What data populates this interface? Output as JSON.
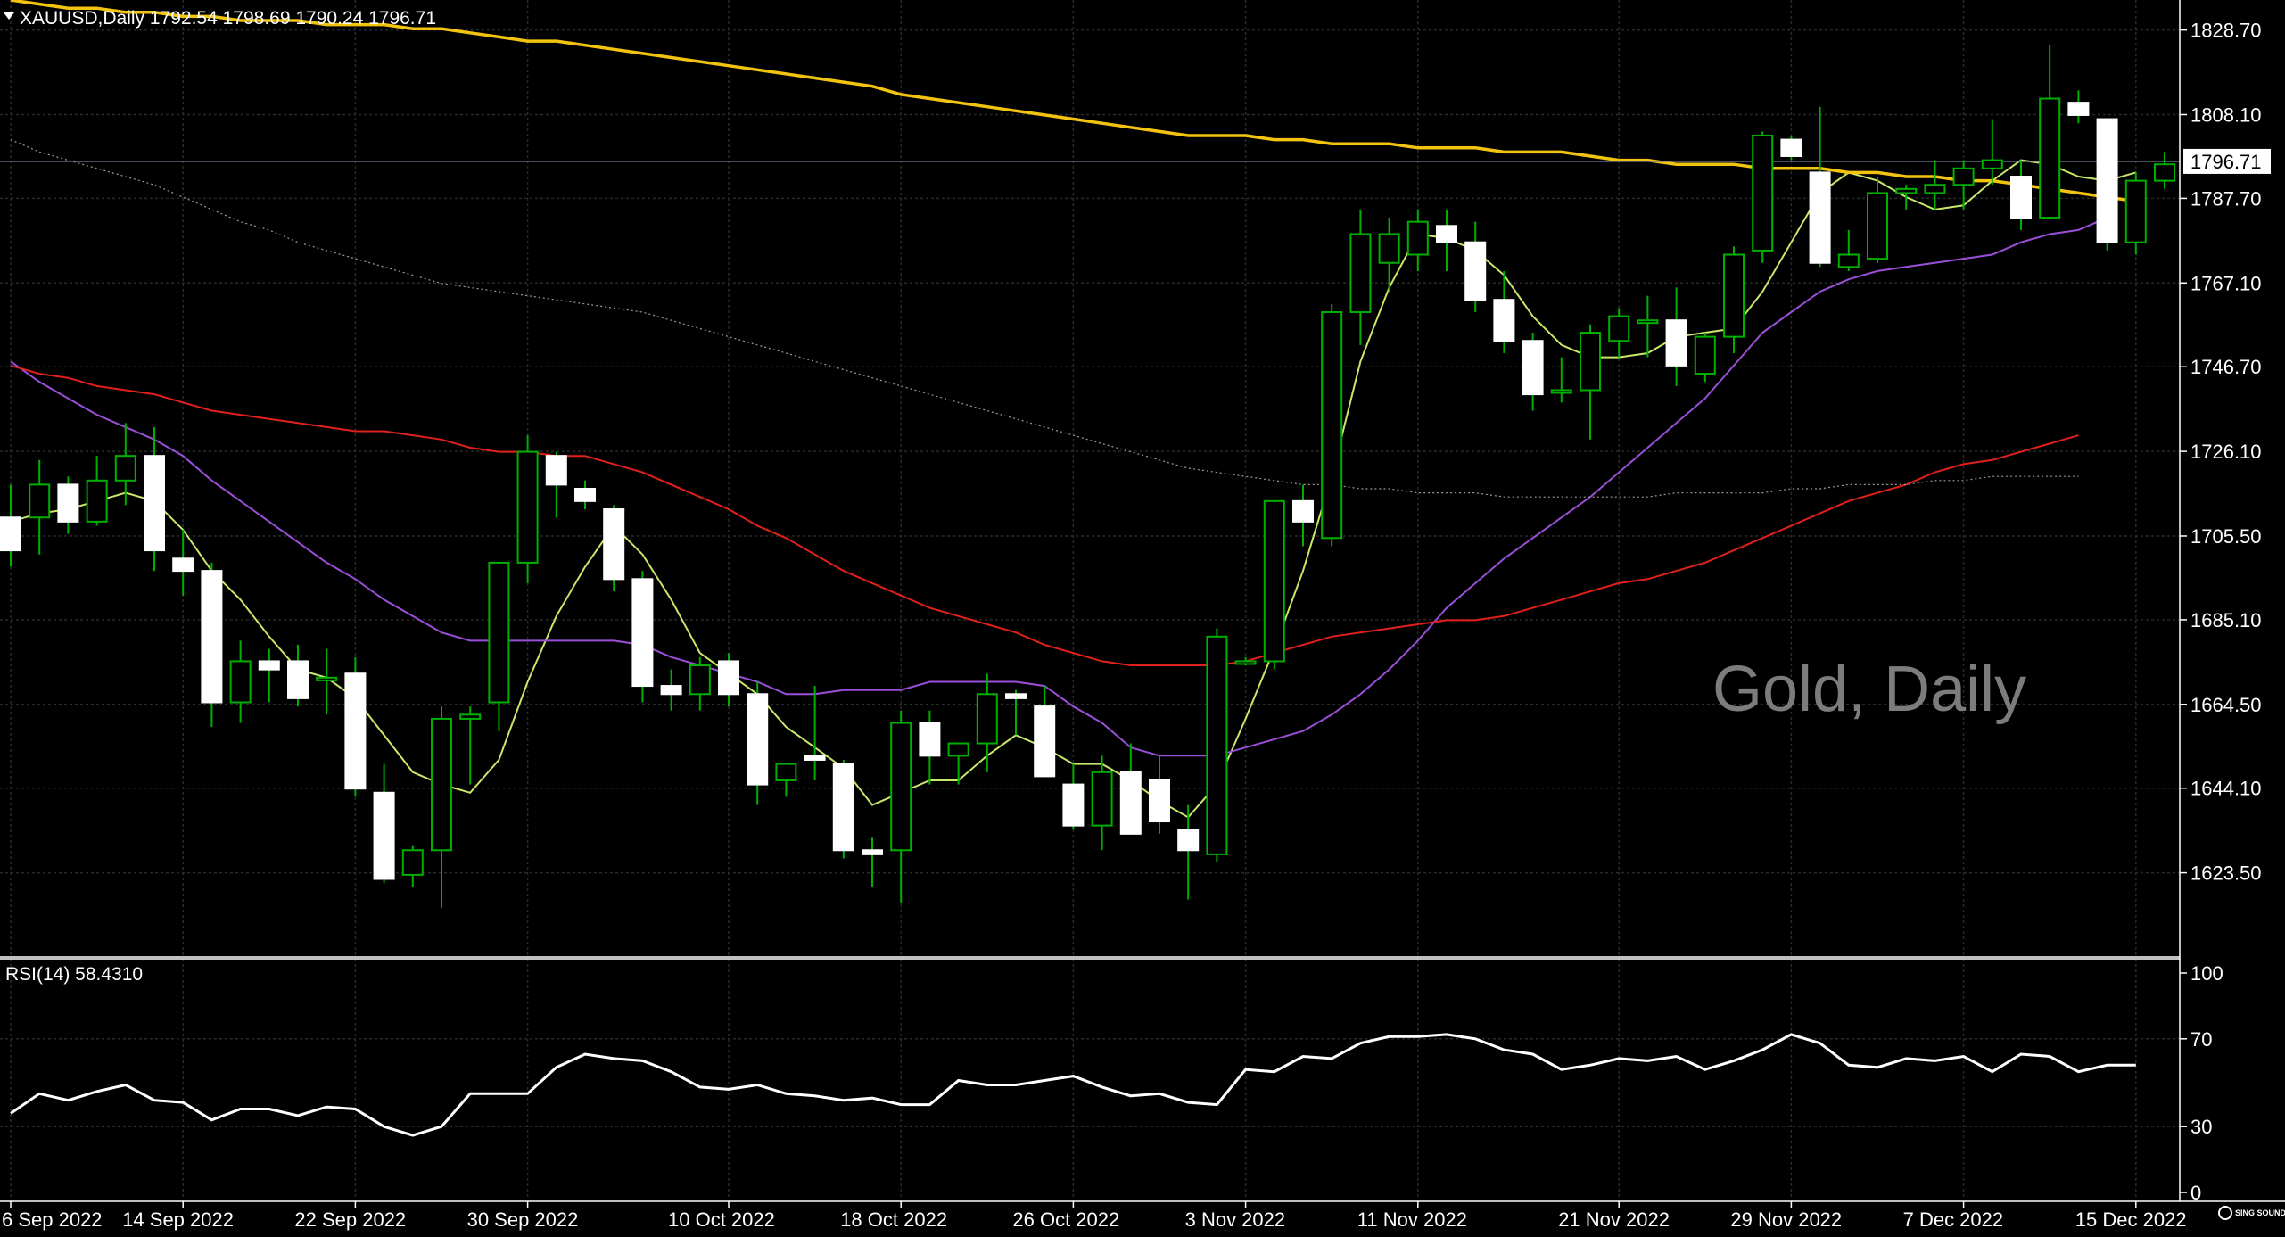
{
  "header": {
    "symbol_line": "XAUUSD,Daily  1792.54 1798.69 1790.24 1796.71",
    "rsi_label": "RSI(14) 58.4310",
    "watermark": "Gold, Daily",
    "logo": "SING SOUND"
  },
  "colors": {
    "background": "#000000",
    "grid": "#2a2a2a",
    "bull_candle": "#000000",
    "bull_outline": "#00b000",
    "bear_candle": "#ffffff",
    "wick": "#00b000",
    "ma_fast": "#c8e86a",
    "ma_purple": "#9b4fd8",
    "ma_red": "#e0201c",
    "ma_yellow": "#f2c40f",
    "ma_grey": "#9a9a9a",
    "rsi_line": "#ffffff",
    "current_price_line": "#708090"
  },
  "chart_data": [
    {
      "type": "candlestick",
      "title": "XAUUSD,Daily",
      "current_price": 1796.71,
      "current_price_label": "1796.71",
      "ylim": [
        1603.0,
        1836.0
      ],
      "y_ticks": [
        "1623.50",
        "1644.10",
        "1664.50",
        "1685.10",
        "1705.50",
        "1726.10",
        "1746.70",
        "1767.10",
        "1787.70",
        "1808.10",
        "1828.70"
      ],
      "x_tick_labels": [
        "6 Sep 2022",
        "14 Sep 2022",
        "22 Sep 2022",
        "30 Sep 2022",
        "10 Oct 2022",
        "18 Oct 2022",
        "26 Oct 2022",
        "3 Nov 2022",
        "11 Nov 2022",
        "21 Nov 2022",
        "29 Nov 2022",
        "7 Dec 2022",
        "15 Dec 2022"
      ],
      "x_tick_indices": [
        0,
        6,
        12,
        18,
        25,
        31,
        37,
        43,
        49,
        56,
        62,
        68,
        74
      ],
      "grid": true,
      "candles": [
        {
          "o": 1710,
          "h": 1718,
          "l": 1698,
          "c": 1702
        },
        {
          "o": 1710,
          "h": 1724,
          "l": 1701,
          "c": 1718
        },
        {
          "o": 1718,
          "h": 1720,
          "l": 1706,
          "c": 1709
        },
        {
          "o": 1709,
          "h": 1725,
          "l": 1708,
          "c": 1719
        },
        {
          "o": 1719,
          "h": 1733,
          "l": 1713,
          "c": 1725
        },
        {
          "o": 1725,
          "h": 1732,
          "l": 1697,
          "c": 1702
        },
        {
          "o": 1700,
          "h": 1707,
          "l": 1691,
          "c": 1697
        },
        {
          "o": 1697,
          "h": 1699,
          "l": 1659,
          "c": 1665
        },
        {
          "o": 1665,
          "h": 1680,
          "l": 1660,
          "c": 1675
        },
        {
          "o": 1675,
          "h": 1678,
          "l": 1665,
          "c": 1673
        },
        {
          "o": 1675,
          "h": 1679,
          "l": 1664,
          "c": 1666
        },
        {
          "o": 1671,
          "h": 1678,
          "l": 1662,
          "c": 1671
        },
        {
          "o": 1672,
          "h": 1676,
          "l": 1642,
          "c": 1644
        },
        {
          "o": 1643,
          "h": 1650,
          "l": 1621,
          "c": 1622
        },
        {
          "o": 1623,
          "h": 1630,
          "l": 1620,
          "c": 1629
        },
        {
          "o": 1629,
          "h": 1664,
          "l": 1615,
          "c": 1661
        },
        {
          "o": 1661,
          "h": 1664,
          "l": 1645,
          "c": 1662
        },
        {
          "o": 1665,
          "h": 1699,
          "l": 1658,
          "c": 1699
        },
        {
          "o": 1699,
          "h": 1730,
          "l": 1694,
          "c": 1726
        },
        {
          "o": 1725,
          "h": 1726,
          "l": 1710,
          "c": 1718
        },
        {
          "o": 1717,
          "h": 1719,
          "l": 1712,
          "c": 1714
        },
        {
          "o": 1712,
          "h": 1713,
          "l": 1692,
          "c": 1695
        },
        {
          "o": 1695,
          "h": 1697,
          "l": 1665,
          "c": 1669
        },
        {
          "o": 1669,
          "h": 1673,
          "l": 1663,
          "c": 1667
        },
        {
          "o": 1667,
          "h": 1676,
          "l": 1663,
          "c": 1674
        },
        {
          "o": 1675,
          "h": 1677,
          "l": 1664,
          "c": 1667
        },
        {
          "o": 1667,
          "h": 1670,
          "l": 1640,
          "c": 1645
        },
        {
          "o": 1646,
          "h": 1650,
          "l": 1642,
          "c": 1650
        },
        {
          "o": 1652,
          "h": 1669,
          "l": 1646,
          "c": 1651
        },
        {
          "o": 1650,
          "h": 1651,
          "l": 1627,
          "c": 1629
        },
        {
          "o": 1629,
          "h": 1632,
          "l": 1620,
          "c": 1628
        },
        {
          "o": 1629,
          "h": 1663,
          "l": 1616,
          "c": 1660
        },
        {
          "o": 1660,
          "h": 1663,
          "l": 1645,
          "c": 1652
        },
        {
          "o": 1652,
          "h": 1655,
          "l": 1645,
          "c": 1655
        },
        {
          "o": 1655,
          "h": 1672,
          "l": 1648,
          "c": 1667
        },
        {
          "o": 1667,
          "h": 1668,
          "l": 1657,
          "c": 1666
        },
        {
          "o": 1664,
          "h": 1669,
          "l": 1648,
          "c": 1647
        },
        {
          "o": 1645,
          "h": 1650,
          "l": 1634,
          "c": 1635
        },
        {
          "o": 1635,
          "h": 1652,
          "l": 1629,
          "c": 1648
        },
        {
          "o": 1648,
          "h": 1655,
          "l": 1634,
          "c": 1633
        },
        {
          "o": 1646,
          "h": 1652,
          "l": 1633,
          "c": 1636
        },
        {
          "o": 1634,
          "h": 1640,
          "l": 1617,
          "c": 1629
        },
        {
          "o": 1628,
          "h": 1683,
          "l": 1626,
          "c": 1681
        },
        {
          "o": 1675,
          "h": 1676,
          "l": 1674,
          "c": 1675
        },
        {
          "o": 1675,
          "h": 1714,
          "l": 1673,
          "c": 1714
        },
        {
          "o": 1714,
          "h": 1718,
          "l": 1703,
          "c": 1709
        },
        {
          "o": 1705,
          "h": 1762,
          "l": 1703,
          "c": 1760
        },
        {
          "o": 1760,
          "h": 1785,
          "l": 1752,
          "c": 1779
        },
        {
          "o": 1772,
          "h": 1783,
          "l": 1765,
          "c": 1779
        },
        {
          "o": 1774,
          "h": 1785,
          "l": 1770,
          "c": 1782
        },
        {
          "o": 1781,
          "h": 1785,
          "l": 1770,
          "c": 1777
        },
        {
          "o": 1777,
          "h": 1782,
          "l": 1760,
          "c": 1763
        },
        {
          "o": 1763,
          "h": 1770,
          "l": 1750,
          "c": 1753
        },
        {
          "o": 1753,
          "h": 1755,
          "l": 1736,
          "c": 1740
        },
        {
          "o": 1741,
          "h": 1749,
          "l": 1738,
          "c": 1741
        },
        {
          "o": 1741,
          "h": 1757,
          "l": 1729,
          "c": 1755
        },
        {
          "o": 1753,
          "h": 1761,
          "l": 1749,
          "c": 1759
        },
        {
          "o": 1758,
          "h": 1764,
          "l": 1749,
          "c": 1758
        },
        {
          "o": 1758,
          "h": 1766,
          "l": 1742,
          "c": 1747
        },
        {
          "o": 1745,
          "h": 1755,
          "l": 1743,
          "c": 1754
        },
        {
          "o": 1754,
          "h": 1776,
          "l": 1750,
          "c": 1774
        },
        {
          "o": 1775,
          "h": 1804,
          "l": 1772,
          "c": 1803
        },
        {
          "o": 1802,
          "h": 1803,
          "l": 1797,
          "c": 1798
        },
        {
          "o": 1794,
          "h": 1810,
          "l": 1771,
          "c": 1772
        },
        {
          "o": 1771,
          "h": 1780,
          "l": 1770,
          "c": 1774
        },
        {
          "o": 1773,
          "h": 1793,
          "l": 1772,
          "c": 1789
        },
        {
          "o": 1789,
          "h": 1791,
          "l": 1785,
          "c": 1790
        },
        {
          "o": 1789,
          "h": 1797,
          "l": 1785,
          "c": 1791
        },
        {
          "o": 1791,
          "h": 1797,
          "l": 1785,
          "c": 1795
        },
        {
          "o": 1795,
          "h": 1807,
          "l": 1791,
          "c": 1797
        },
        {
          "o": 1793,
          "h": 1797,
          "l": 1780,
          "c": 1783
        },
        {
          "o": 1783,
          "h": 1825,
          "l": 1783,
          "c": 1812
        },
        {
          "o": 1811,
          "h": 1814,
          "l": 1806,
          "c": 1808
        },
        {
          "o": 1807,
          "h": 1807,
          "l": 1775,
          "c": 1777
        },
        {
          "o": 1777,
          "h": 1794,
          "l": 1774,
          "c": 1792
        },
        {
          "o": 1792,
          "h": 1799,
          "l": 1790,
          "c": 1796
        }
      ],
      "series": [
        {
          "color": "#c8e86a",
          "values": [
            1709,
            1711,
            1712,
            1714,
            1716,
            1714,
            1707,
            1697,
            1690,
            1681,
            1673,
            1671,
            1666,
            1657,
            1648,
            1645,
            1643,
            1651,
            1670,
            1686,
            1698,
            1708,
            1701,
            1690,
            1677,
            1672,
            1667,
            1659,
            1654,
            1649,
            1640,
            1643,
            1646,
            1646,
            1652,
            1657,
            1654,
            1650,
            1650,
            1646,
            1641,
            1637,
            1645,
            1661,
            1678,
            1697,
            1720,
            1748,
            1766,
            1779,
            1778,
            1775,
            1769,
            1759,
            1752,
            1749,
            1749,
            1750,
            1754,
            1755,
            1756,
            1765,
            1777,
            1789,
            1794,
            1792,
            1788,
            1785,
            1786,
            1792,
            1797,
            1796,
            1793,
            1792,
            1794
          ]
        },
        {
          "color": "#9b4fd8",
          "values": [
            1748,
            1743,
            1739,
            1735,
            1732,
            1729,
            1725,
            1719,
            1714,
            1709,
            1704,
            1699,
            1695,
            1690,
            1686,
            1682,
            1680,
            1680,
            1680,
            1680,
            1680,
            1680,
            1679,
            1676,
            1674,
            1672,
            1670,
            1667,
            1667,
            1668,
            1668,
            1668,
            1670,
            1670,
            1670,
            1670,
            1669,
            1664,
            1660,
            1654,
            1652,
            1652,
            1652,
            1654,
            1656,
            1658,
            1662,
            1667,
            1673,
            1680,
            1688,
            1694,
            1700,
            1705,
            1710,
            1715,
            1721,
            1727,
            1733,
            1739,
            1747,
            1755,
            1760,
            1765,
            1768,
            1770,
            1771,
            1772,
            1773,
            1774,
            1777,
            1779,
            1780,
            1783
          ]
        },
        {
          "color": "#e0201c",
          "values": [
            1747,
            1745,
            1744,
            1742,
            1741,
            1740,
            1738,
            1736,
            1735,
            1734,
            1733,
            1732,
            1731,
            1731,
            1730,
            1729,
            1727,
            1726,
            1726,
            1725,
            1725,
            1723,
            1721,
            1718,
            1715,
            1712,
            1708,
            1705,
            1701,
            1697,
            1694,
            1691,
            1688,
            1686,
            1684,
            1682,
            1679,
            1677,
            1675,
            1674,
            1674,
            1674,
            1674,
            1675,
            1677,
            1679,
            1681,
            1682,
            1683,
            1684,
            1685,
            1685,
            1686,
            1688,
            1690,
            1692,
            1694,
            1695,
            1697,
            1699,
            1702,
            1705,
            1708,
            1711,
            1714,
            1716,
            1718,
            1721,
            1723,
            1724,
            1726,
            1728,
            1730
          ]
        },
        {
          "color": "#f2c40f",
          "values": [
            1836,
            1835,
            1834,
            1834,
            1833,
            1833,
            1832,
            1832,
            1831,
            1831,
            1831,
            1830,
            1830,
            1830,
            1829,
            1829,
            1828,
            1827,
            1826,
            1826,
            1825,
            1824,
            1823,
            1822,
            1821,
            1820,
            1819,
            1818,
            1817,
            1816,
            1815,
            1813,
            1812,
            1811,
            1810,
            1809,
            1808,
            1807,
            1806,
            1805,
            1804,
            1803,
            1803,
            1803,
            1802,
            1802,
            1801,
            1801,
            1801,
            1800,
            1800,
            1800,
            1799,
            1799,
            1799,
            1798,
            1797,
            1797,
            1796,
            1796,
            1796,
            1795,
            1795,
            1795,
            1794,
            1794,
            1793,
            1793,
            1792,
            1792,
            1791,
            1790,
            1789,
            1788,
            1787
          ]
        },
        {
          "color": "#9a9a9a",
          "values": [
            1802,
            1799,
            1797,
            1795,
            1793,
            1791,
            1788,
            1785,
            1782,
            1780,
            1777,
            1775,
            1773,
            1771,
            1769,
            1767,
            1766,
            1765,
            1764,
            1763,
            1762,
            1761,
            1760,
            1758,
            1756,
            1754,
            1752,
            1750,
            1748,
            1746,
            1744,
            1742,
            1740,
            1738,
            1736,
            1734,
            1732,
            1730,
            1728,
            1726,
            1724,
            1722,
            1721,
            1720,
            1719,
            1718,
            1718,
            1717,
            1717,
            1716,
            1716,
            1716,
            1715,
            1715,
            1715,
            1715,
            1715,
            1715,
            1716,
            1716,
            1716,
            1716,
            1717,
            1717,
            1718,
            1718,
            1718,
            1719,
            1719,
            1720,
            1720,
            1720,
            1720
          ]
        }
      ]
    },
    {
      "type": "line",
      "title": "RSI(14) 58.4310",
      "ylim": [
        0,
        100
      ],
      "y_ticks": [
        "0",
        "30",
        "70",
        "100"
      ],
      "series": [
        {
          "color": "#ffffff",
          "values": [
            36,
            45,
            42,
            46,
            49,
            42,
            41,
            33,
            38,
            38,
            35,
            39,
            38,
            30,
            26,
            30,
            45,
            45,
            45,
            57,
            63,
            61,
            60,
            55,
            48,
            47,
            49,
            45,
            44,
            42,
            43,
            40,
            40,
            51,
            49,
            49,
            51,
            53,
            48,
            44,
            45,
            41,
            40,
            56,
            55,
            62,
            61,
            68,
            71,
            71,
            72,
            70,
            65,
            63,
            56,
            58,
            61,
            60,
            62,
            56,
            60,
            65,
            72,
            68,
            58,
            57,
            61,
            60,
            62,
            55,
            63,
            62,
            55,
            58,
            58
          ]
        }
      ]
    }
  ]
}
